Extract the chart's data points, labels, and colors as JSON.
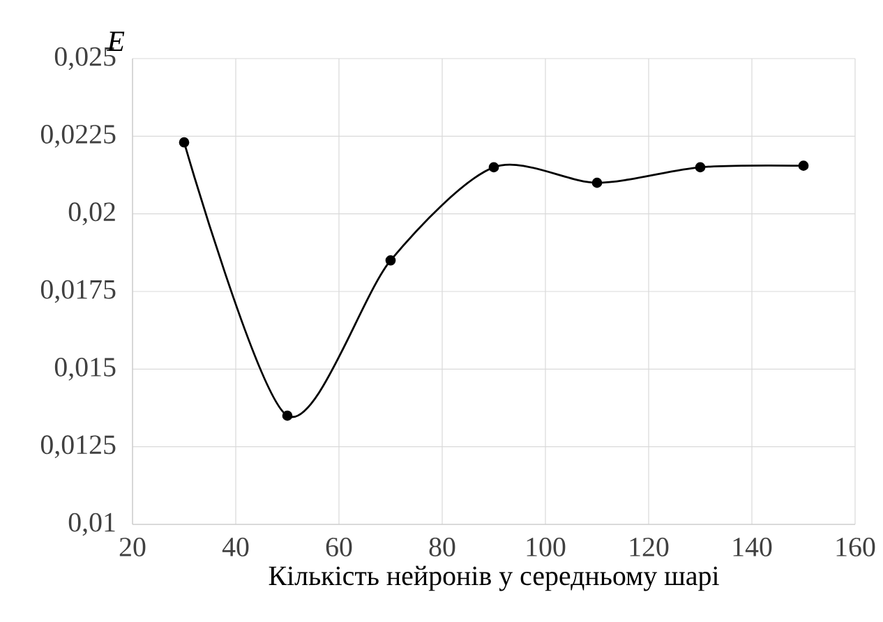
{
  "chart_data": {
    "type": "line",
    "xlabel": "Кількість нейронів у середньому шарі",
    "ylabel": "*E*",
    "x": [
      30,
      50,
      70,
      90,
      110,
      130,
      150
    ],
    "series": [
      {
        "color": "#000000",
        "values": [
          0.0223,
          0.0135,
          0.0185,
          0.0215,
          0.021,
          0.0215,
          0.02155
        ]
      }
    ],
    "xlim": [
      20,
      160
    ],
    "xticks": [
      20,
      40,
      60,
      80,
      100,
      120,
      140,
      160
    ],
    "ylim": [
      0.01,
      0.025
    ],
    "yticks": [
      {
        "value": 0.01,
        "label": "0,01"
      },
      {
        "value": 0.0125,
        "label": "0,0125"
      },
      {
        "value": 0.015,
        "label": "0,015"
      },
      {
        "value": 0.0175,
        "label": "0,0175"
      },
      {
        "value": 0.02,
        "label": "0,02"
      },
      {
        "value": 0.0225,
        "label": "0,0225"
      },
      {
        "value": 0.025,
        "label": "0,025"
      }
    ],
    "grid": true,
    "marker": "circle"
  }
}
